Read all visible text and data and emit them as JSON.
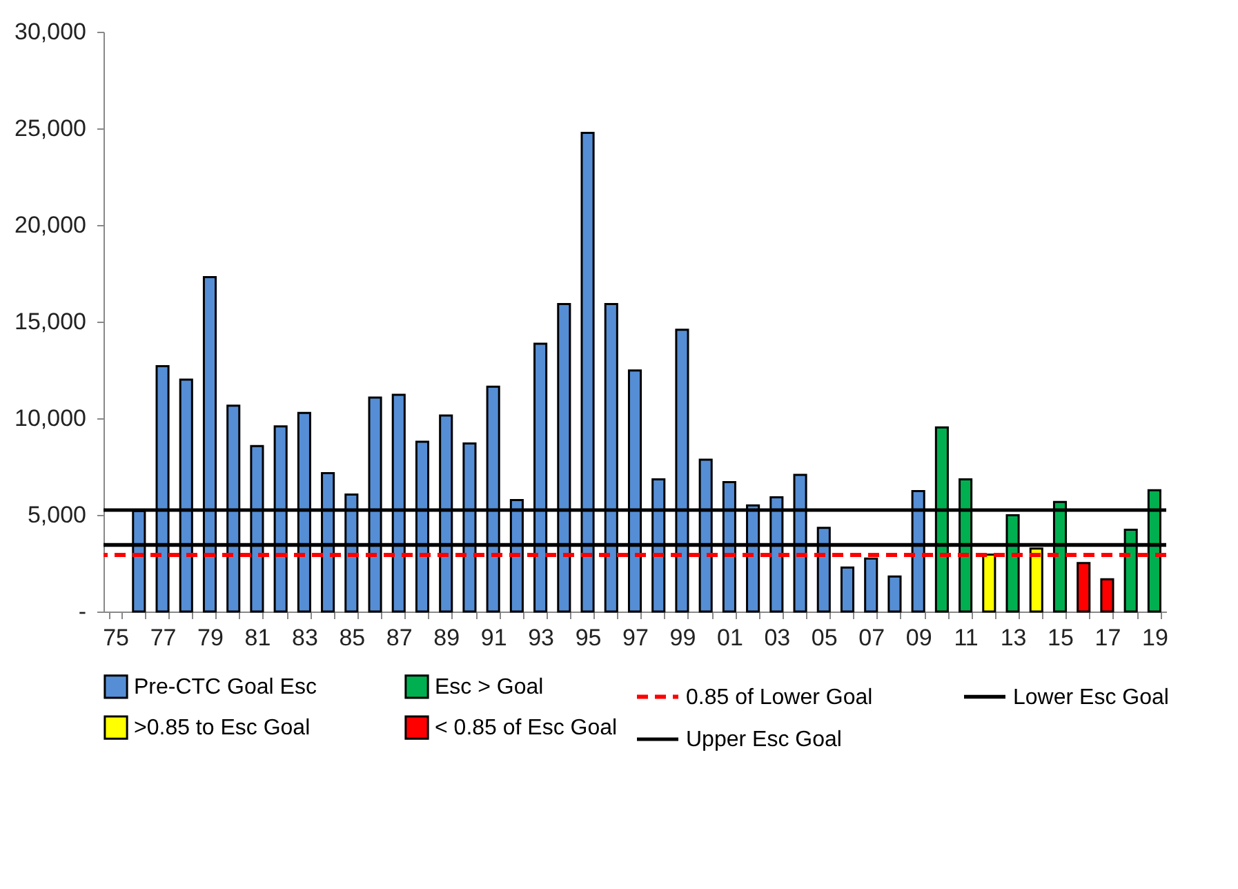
{
  "chart_data": {
    "type": "bar",
    "categories": [
      "75",
      null,
      "77",
      null,
      "79",
      null,
      "81",
      null,
      "83",
      null,
      "85",
      null,
      "87",
      null,
      "89",
      null,
      "91",
      null,
      "93",
      null,
      "95",
      null,
      "97",
      null,
      "99",
      null,
      "01",
      null,
      "03",
      null,
      "05",
      null,
      "07",
      null,
      "09",
      null,
      "11",
      null,
      "13",
      null,
      "15",
      null,
      "17",
      null,
      "19"
    ],
    "series": [
      {
        "name": "Pre-CTC Goal Esc",
        "color": "#558ed5",
        "values": [
          null,
          5200,
          12700,
          12000,
          17300,
          10650,
          8560,
          9580,
          10280,
          7160,
          6050,
          11070,
          11210,
          8790,
          10140,
          8700,
          11630,
          5770,
          13860,
          15910,
          24770,
          15910,
          12470,
          6840,
          14580,
          7860,
          6700,
          5490,
          5910,
          7070,
          4330,
          2280,
          2740,
          1810,
          6230,
          null,
          null,
          null,
          null,
          null,
          null,
          null,
          null,
          null,
          null
        ]
      },
      {
        "name": "Esc > Goal",
        "color": "#00b050",
        "values": [
          null,
          null,
          null,
          null,
          null,
          null,
          null,
          null,
          null,
          null,
          null,
          null,
          null,
          null,
          null,
          null,
          null,
          null,
          null,
          null,
          null,
          null,
          null,
          null,
          null,
          null,
          null,
          null,
          null,
          null,
          null,
          null,
          null,
          null,
          null,
          9530,
          6840,
          null,
          4980,
          null,
          5670,
          null,
          null,
          4230,
          6280
        ]
      },
      {
        "name": ">0.85 to  Esc Goal",
        "color": "#ffff00",
        "values": [
          null,
          null,
          null,
          null,
          null,
          null,
          null,
          null,
          null,
          null,
          null,
          null,
          null,
          null,
          null,
          null,
          null,
          null,
          null,
          null,
          null,
          null,
          null,
          null,
          null,
          null,
          null,
          null,
          null,
          null,
          null,
          null,
          null,
          null,
          null,
          null,
          null,
          2950,
          null,
          3260,
          null,
          null,
          null,
          null,
          null
        ]
      },
      {
        "name": "< 0.85 of  Esc Goal",
        "color": "#ff0000",
        "values": [
          null,
          null,
          null,
          null,
          null,
          null,
          null,
          null,
          null,
          null,
          null,
          null,
          null,
          null,
          null,
          null,
          null,
          null,
          null,
          null,
          null,
          null,
          null,
          null,
          null,
          null,
          null,
          null,
          null,
          null,
          null,
          null,
          null,
          null,
          null,
          null,
          null,
          null,
          null,
          null,
          null,
          2510,
          1670,
          null,
          null
        ]
      }
    ],
    "ref_lines": [
      {
        "axis": "y",
        "value": 2930,
        "label": "0.85 of Lower Goal",
        "color": "#ff0000",
        "line_style": "dashed"
      },
      {
        "axis": "y",
        "value": 3450,
        "label": "Lower Esc Goal",
        "color": "#000000",
        "line_style": "solid"
      },
      {
        "axis": "y",
        "value": 5250,
        "label": "Upper Esc Goal",
        "color": "#000000",
        "line_style": "solid"
      }
    ],
    "ylim": [
      0,
      30000
    ],
    "yticks": [
      {
        "value": 0,
        "label": "-"
      },
      {
        "value": 5000,
        "label": "5,000"
      },
      {
        "value": 10000,
        "label": "10,000"
      },
      {
        "value": 15000,
        "label": "15,000"
      },
      {
        "value": 20000,
        "label": "20,000"
      },
      {
        "value": 25000,
        "label": "25,000"
      },
      {
        "value": 30000,
        "label": "30,000"
      }
    ],
    "grid": false,
    "legend": "bottom"
  }
}
